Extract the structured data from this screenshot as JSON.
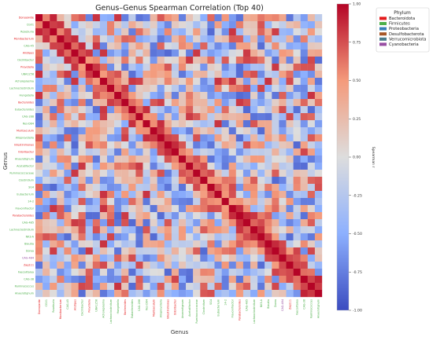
{
  "chart_data": {
    "type": "heatmap",
    "title": "Genus–Genus Spearman Correlation (Top 40)",
    "xlabel": "Genus",
    "ylabel": "Genus",
    "colorbar_label": "Spearman r",
    "colorbar_range": [
      -1.0,
      1.0
    ],
    "colorbar_ticks": [
      "1.00",
      "0.75",
      "0.50",
      "0.25",
      "0.00",
      "-0.25",
      "-0.50",
      "-0.75",
      "-1.00"
    ],
    "colormap": [
      "#3b4cc0",
      "#8db0fe",
      "#dddddd",
      "#f49a7b",
      "#b40426"
    ],
    "genera": [
      "Dorea/wide",
      "CG01",
      "Roseburia",
      "Monibacterium",
      "CAG-45",
      "Alistipes",
      "Oscillibacter",
      "Prevotella",
      "UBA1258",
      "Acholeplasma",
      "Lachnoclostridium",
      "Hungatella",
      "Bacteroides",
      "Eubacteroides",
      "CAG-288",
      "Res-D84",
      "Muribaculum",
      "Alloprevotella",
      "Intestinimonas",
      "Odoribacter",
      "Anaerotignum",
      "Acetatifactor",
      "Ruminococcaceae",
      "Clostridium",
      "SG4",
      "Eubacterium",
      "14-2",
      "Flavonifractor",
      "Parabacteroides",
      "CAG-485",
      "Lachnoclostridium",
      "NK3-A",
      "Blautia",
      "Dorea",
      "CAG-484",
      "Zag111",
      "Faecalitalea",
      "CAG-38",
      "Ruminococcus",
      "Anaerotignum"
    ],
    "genus_phylum": [
      "Bacteroidota",
      "Firmicutes",
      "Firmicutes",
      "Bacteroidota",
      "Firmicutes",
      "Bacteroidota",
      "Firmicutes",
      "Bacteroidota",
      "Firmicutes",
      "Firmicutes",
      "Firmicutes",
      "Firmicutes",
      "Bacteroidota",
      "Firmicutes",
      "Firmicutes",
      "Firmicutes",
      "Bacteroidota",
      "Firmicutes",
      "Bacteroidota",
      "Bacteroidota",
      "Firmicutes",
      "Firmicutes",
      "Firmicutes",
      "Firmicutes",
      "Firmicutes",
      "Firmicutes",
      "Firmicutes",
      "Firmicutes",
      "Bacteroidota",
      "Firmicutes",
      "Firmicutes",
      "Firmicutes",
      "Firmicutes",
      "Firmicutes",
      "Cyanobacteria",
      "Bacteroidota",
      "Firmicutes",
      "Firmicutes",
      "Firmicutes",
      "Firmicutes"
    ],
    "legend": {
      "title": "Phylum",
      "placement": "top-right",
      "entries": [
        {
          "name": "Bacteroidota",
          "color": "#e41a1c"
        },
        {
          "name": "Firmicutes",
          "color": "#4daf4a"
        },
        {
          "name": "Proteobacteria",
          "color": "#377eb8"
        },
        {
          "name": "Desulfobacterota",
          "color": "#a65628"
        },
        {
          "name": "Verrucomicrobiota",
          "color": "#4a7c8c"
        },
        {
          "name": "Cyanobacteria",
          "color": "#984ea3"
        }
      ]
    },
    "diagonal_value": 1.0,
    "matrix_note": "symmetric 40x40; diagonal 1.0",
    "seed": 7
  }
}
